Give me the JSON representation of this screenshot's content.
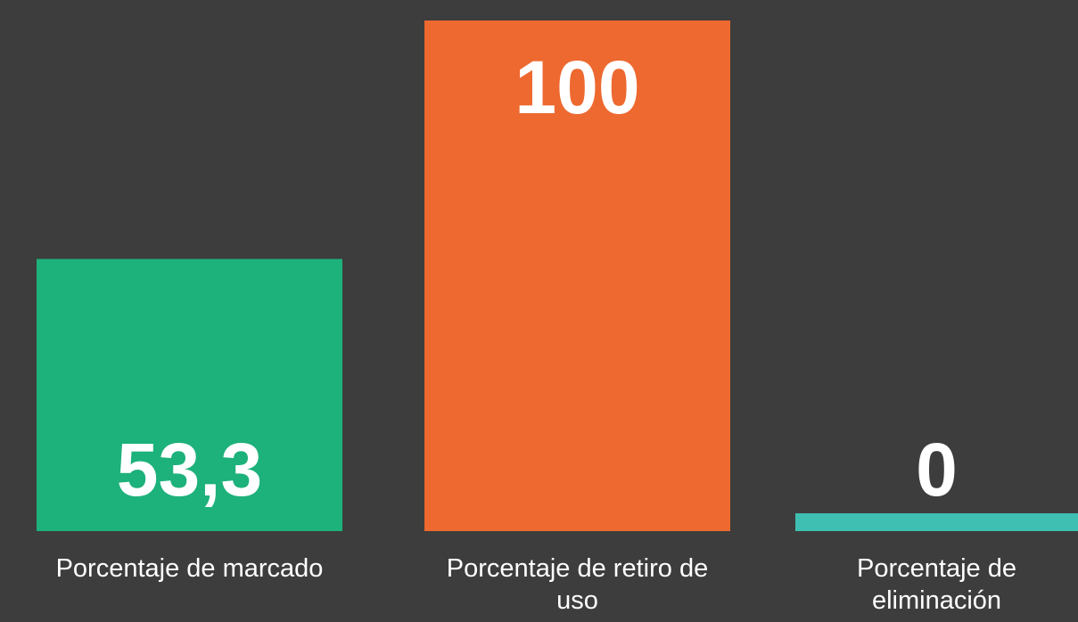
{
  "chart_data": {
    "type": "bar",
    "categories": [
      "Porcentaje de marcado",
      "Porcentaje de retiro de uso",
      "Porcentaje de eliminación"
    ],
    "values": [
      53.3,
      100,
      0
    ],
    "value_labels": [
      "53,3",
      "100",
      "0"
    ],
    "colors": [
      "#1db17b",
      "#ed6930",
      "#3fbfb1"
    ],
    "ylim": [
      0,
      100
    ]
  }
}
